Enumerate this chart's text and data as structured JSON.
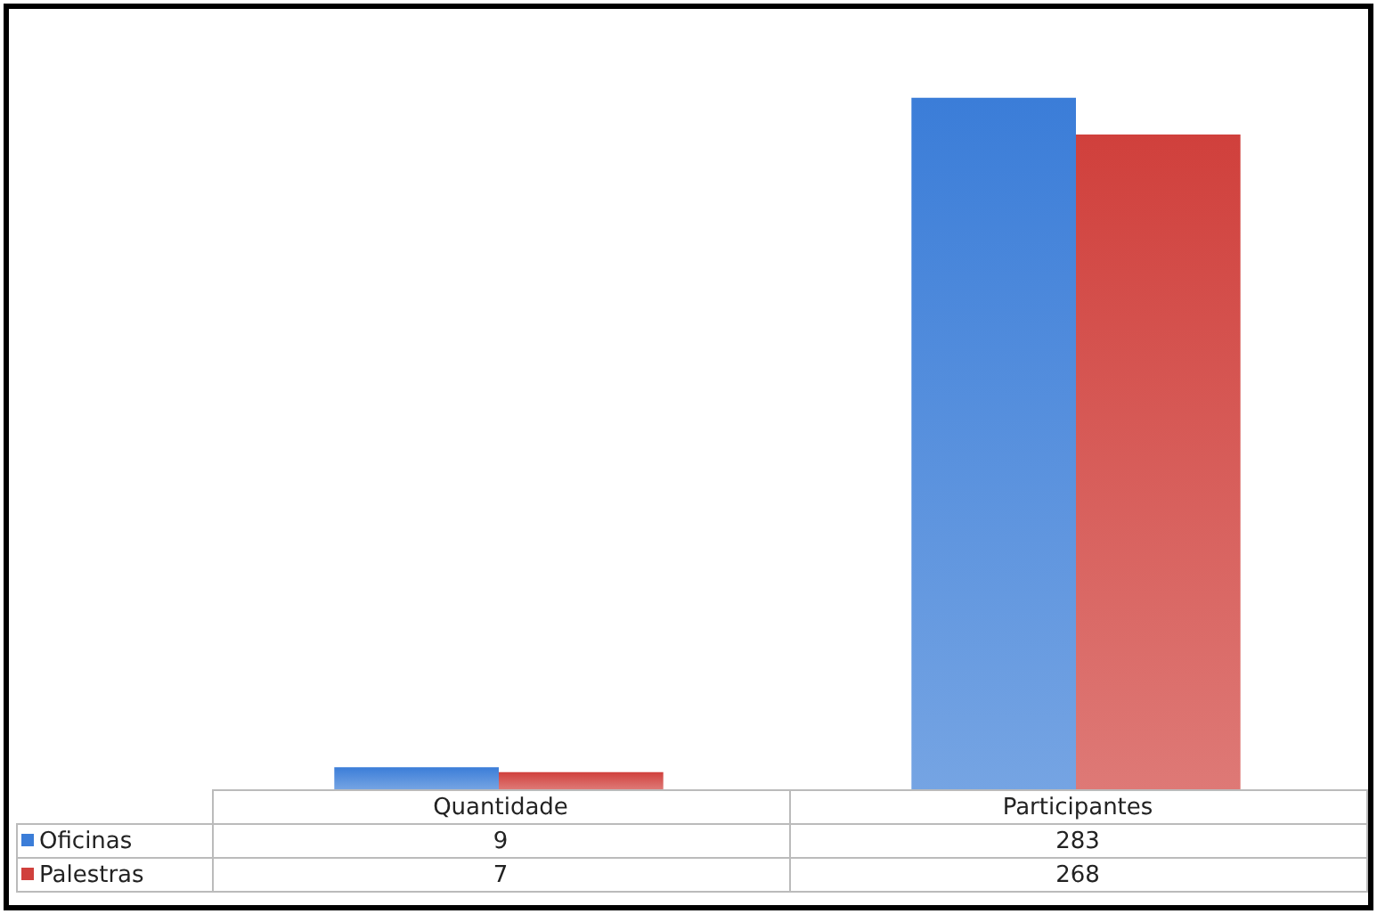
{
  "chart_data": {
    "type": "bar",
    "categories": [
      "Quantidade",
      "Participantes"
    ],
    "series": [
      {
        "name": "Oficinas",
        "color": "#3b7dd8",
        "values": [
          9,
          283
        ]
      },
      {
        "name": "Palestras",
        "color": "#d0403c",
        "values": [
          7,
          268
        ]
      }
    ],
    "data_labels": true,
    "legend": "bottom left"
  }
}
